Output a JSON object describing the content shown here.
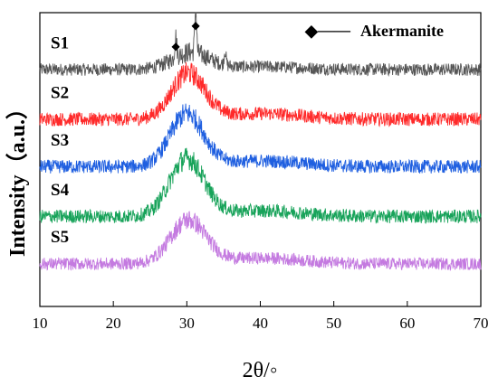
{
  "chart_data": {
    "type": "line",
    "xlabel": "2θ/◦",
    "ylabel": "Intensity（a.u.）",
    "xlim": [
      10,
      70
    ],
    "x_ticks": [
      "10",
      "20",
      "30",
      "40",
      "50",
      "60",
      "70"
    ],
    "y_ticks_shown": false,
    "legend": {
      "marker": "◆",
      "dash": "——",
      "label": "Akermanite",
      "placement": "top-right"
    },
    "peak_markers": [
      {
        "symbol": "◆",
        "x": 28.5
      },
      {
        "symbol": "◆",
        "x": 31.2
      }
    ],
    "series": [
      {
        "name": "S1",
        "color": "#555555",
        "baseline": 5.0,
        "hump_height": 0.35,
        "hump_center": 30.5,
        "hump_width": 3.5,
        "noise": 0.22,
        "sharp_peaks": [
          {
            "x": 28.5,
            "h": 0.45
          },
          {
            "x": 31.2,
            "h": 0.9
          },
          {
            "x": 35.2,
            "h": 0.3
          }
        ]
      },
      {
        "name": "S2",
        "color": "#ff2a2a",
        "baseline": 3.95,
        "hump_height": 0.95,
        "hump_center": 30.2,
        "hump_width": 3.2,
        "noise": 0.24,
        "sharp_peaks": []
      },
      {
        "name": "S3",
        "color": "#1f5fe0",
        "baseline": 2.95,
        "hump_height": 1.1,
        "hump_center": 30.0,
        "hump_width": 3.2,
        "noise": 0.24,
        "sharp_peaks": []
      },
      {
        "name": "S4",
        "color": "#18a35a",
        "baseline": 1.9,
        "hump_height": 1.2,
        "hump_center": 30.0,
        "hump_width": 3.3,
        "noise": 0.24,
        "sharp_peaks": []
      },
      {
        "name": "S5",
        "color": "#c47ae0",
        "baseline": 0.9,
        "hump_height": 0.9,
        "hump_center": 30.2,
        "hump_width": 3.4,
        "noise": 0.22,
        "sharp_peaks": []
      }
    ]
  }
}
